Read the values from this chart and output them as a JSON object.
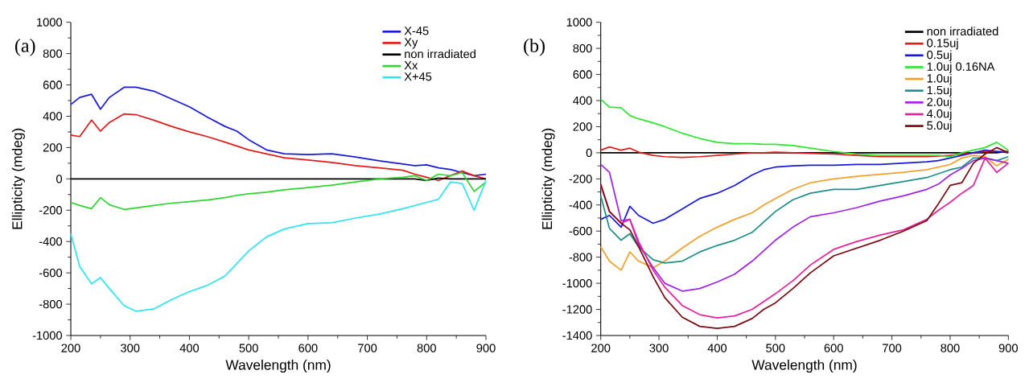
{
  "chart_data": [
    {
      "type": "line",
      "xlabel": "Wavelength (nm)",
      "ylabel": "Ellipticity (mdeg)",
      "annotations": [
        "(a)"
      ],
      "legend": "top right",
      "xlim": [
        200,
        900
      ],
      "ylim": [
        -1000,
        1000
      ],
      "xticks": [
        200,
        300,
        400,
        500,
        600,
        700,
        800,
        900
      ],
      "yticks": [
        -1000,
        -800,
        -600,
        -400,
        -200,
        0,
        200,
        400,
        600,
        800,
        1000
      ],
      "x": [
        200,
        215,
        235,
        250,
        265,
        290,
        310,
        340,
        370,
        400,
        430,
        460,
        480,
        500,
        530,
        560,
        600,
        640,
        680,
        720,
        760,
        780,
        800,
        820,
        840,
        860,
        880,
        900
      ],
      "series": [
        {
          "name": "X-45",
          "color": "#1a1adc",
          "values": [
            475,
            520,
            540,
            445,
            520,
            585,
            585,
            560,
            510,
            460,
            395,
            335,
            305,
            250,
            185,
            160,
            155,
            160,
            140,
            115,
            95,
            85,
            90,
            70,
            60,
            40,
            20,
            30
          ]
        },
        {
          "name": "Xy",
          "color": "#e01c1c",
          "values": [
            280,
            270,
            375,
            305,
            360,
            415,
            410,
            375,
            335,
            300,
            270,
            235,
            210,
            185,
            160,
            135,
            120,
            105,
            85,
            70,
            55,
            30,
            10,
            -10,
            20,
            50,
            20,
            0
          ]
        },
        {
          "name": "non irradiated",
          "color": "#000000",
          "values": [
            0,
            0,
            0,
            0,
            0,
            0,
            0,
            0,
            0,
            0,
            0,
            0,
            0,
            0,
            0,
            0,
            0,
            0,
            0,
            0,
            0,
            0,
            -10,
            5,
            0,
            0,
            0,
            0
          ]
        },
        {
          "name": "Xx",
          "color": "#2ed62e",
          "values": [
            -150,
            -170,
            -190,
            -120,
            -165,
            -195,
            -185,
            -170,
            -155,
            -145,
            -135,
            -120,
            -105,
            -95,
            -85,
            -70,
            -55,
            -40,
            -20,
            0,
            10,
            20,
            -10,
            30,
            20,
            40,
            -80,
            -20
          ]
        },
        {
          "name": "X+45",
          "color": "#2ee6ee",
          "values": [
            -350,
            -560,
            -670,
            -630,
            -700,
            -810,
            -845,
            -830,
            -770,
            -720,
            -680,
            -620,
            -540,
            -460,
            -370,
            -320,
            -285,
            -280,
            -250,
            -225,
            -190,
            -170,
            -150,
            -130,
            -20,
            -30,
            -200,
            -10
          ]
        }
      ]
    },
    {
      "type": "line",
      "xlabel": "Wavelength (nm)",
      "ylabel": "Ellipticity (mdeg)",
      "annotations": [
        "(b)"
      ],
      "legend": "top right",
      "xlim": [
        200,
        900
      ],
      "ylim": [
        -1400,
        1000
      ],
      "xticks": [
        200,
        300,
        400,
        500,
        600,
        700,
        800,
        900
      ],
      "yticks": [
        -1400,
        -1200,
        -1000,
        -800,
        -600,
        -400,
        -200,
        0,
        200,
        400,
        600,
        800,
        1000
      ],
      "x": [
        200,
        215,
        235,
        250,
        265,
        290,
        310,
        340,
        370,
        400,
        430,
        460,
        480,
        500,
        530,
        560,
        600,
        640,
        680,
        720,
        760,
        780,
        800,
        820,
        840,
        860,
        880,
        900
      ],
      "series": [
        {
          "name": "non irradiated",
          "color": "#000000",
          "values": [
            0,
            0,
            0,
            0,
            0,
            0,
            0,
            0,
            0,
            0,
            0,
            0,
            0,
            0,
            0,
            0,
            0,
            0,
            0,
            0,
            0,
            0,
            0,
            0,
            0,
            0,
            0,
            10
          ]
        },
        {
          "name": "0.15uj",
          "color": "#e01c1c",
          "values": [
            20,
            45,
            20,
            35,
            5,
            -20,
            -30,
            -35,
            -30,
            -20,
            -10,
            0,
            0,
            5,
            0,
            -5,
            -10,
            -20,
            -30,
            -30,
            -30,
            -25,
            -20,
            -10,
            0,
            10,
            10,
            10
          ]
        },
        {
          "name": "0.5uj",
          "color": "#1a1adc",
          "values": [
            -510,
            -480,
            -570,
            -410,
            -480,
            -540,
            -510,
            -430,
            -350,
            -310,
            -250,
            -170,
            -130,
            -110,
            -100,
            -95,
            -95,
            -90,
            -90,
            -80,
            -70,
            -60,
            -40,
            -20,
            0,
            20,
            10,
            0
          ]
        },
        {
          "name": "1.0uj 0.16NA",
          "color": "#2ee62e",
          "values": [
            410,
            350,
            345,
            285,
            260,
            230,
            200,
            150,
            110,
            80,
            70,
            70,
            65,
            65,
            55,
            35,
            10,
            -10,
            -20,
            -20,
            -20,
            -20,
            -30,
            0,
            20,
            40,
            80,
            20
          ]
        },
        {
          "name": "1.0uj",
          "color": "#f5a02a",
          "values": [
            -720,
            -830,
            -900,
            -760,
            -830,
            -880,
            -830,
            -730,
            -640,
            -570,
            -510,
            -460,
            -400,
            -350,
            -280,
            -230,
            -200,
            -180,
            -165,
            -150,
            -130,
            -110,
            -90,
            -40,
            -20,
            -30,
            -100,
            -50
          ]
        },
        {
          "name": "1.5uj",
          "color": "#1e9088",
          "values": [
            -330,
            -580,
            -670,
            -620,
            -720,
            -820,
            -845,
            -830,
            -760,
            -710,
            -670,
            -610,
            -530,
            -450,
            -360,
            -310,
            -280,
            -280,
            -250,
            -220,
            -190,
            -160,
            -130,
            -110,
            -40,
            -40,
            -60,
            -30
          ]
        },
        {
          "name": "2.0uj",
          "color": "#a024e8",
          "values": [
            -90,
            -150,
            -520,
            -510,
            -700,
            -880,
            -1000,
            -1060,
            -1040,
            -990,
            -930,
            -830,
            -750,
            -670,
            -570,
            -490,
            -460,
            -420,
            -370,
            -330,
            -280,
            -240,
            -170,
            -120,
            -60,
            -40,
            -60,
            -80
          ]
        },
        {
          "name": "4.0uj",
          "color": "#e8229a",
          "values": [
            -250,
            -450,
            -540,
            -510,
            -680,
            -900,
            -1030,
            -1170,
            -1240,
            -1265,
            -1250,
            -1200,
            -1140,
            -1080,
            -980,
            -860,
            -740,
            -680,
            -630,
            -590,
            -510,
            -440,
            -380,
            -310,
            -250,
            -40,
            -150,
            -80
          ]
        },
        {
          "name": "5.0uj",
          "color": "#7a0c14",
          "values": [
            -240,
            -450,
            -540,
            -590,
            -720,
            -950,
            -1110,
            -1260,
            -1330,
            -1345,
            -1330,
            -1270,
            -1200,
            -1150,
            -1040,
            -920,
            -790,
            -730,
            -670,
            -600,
            -520,
            -390,
            -250,
            -230,
            -80,
            -10,
            40,
            0
          ]
        }
      ]
    }
  ]
}
